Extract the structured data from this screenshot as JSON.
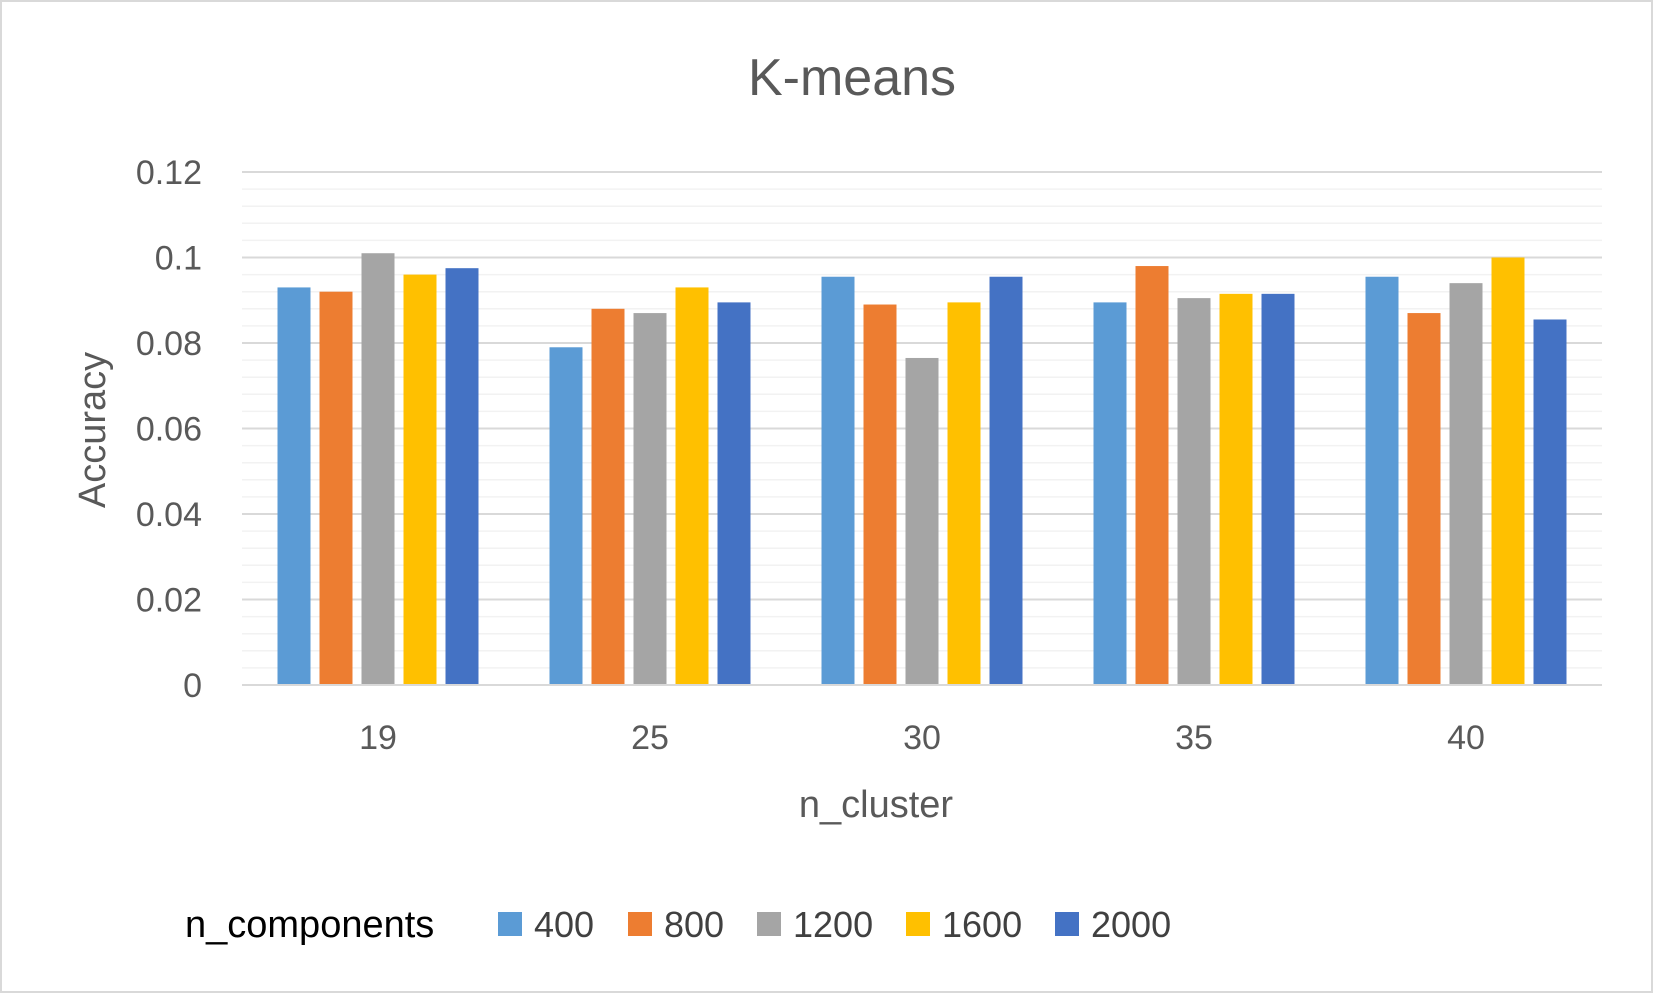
{
  "chart_data": {
    "type": "bar",
    "title": "K-means",
    "xlabel": "n_cluster",
    "ylabel": "Accuracy",
    "categories": [
      "19",
      "25",
      "30",
      "35",
      "40"
    ],
    "ylim": [
      0,
      0.12
    ],
    "yticks": [
      "0",
      "0.02",
      "0.04",
      "0.06",
      "0.08",
      "0.1",
      "0.12"
    ],
    "grid": true,
    "legend_title": "n_components",
    "legend_position": "bottom",
    "series": [
      {
        "name": "400",
        "color": "#5B9BD5",
        "values": [
          0.093,
          0.079,
          0.0955,
          0.0895,
          0.0955
        ]
      },
      {
        "name": "800",
        "color": "#ED7D31",
        "values": [
          0.092,
          0.088,
          0.089,
          0.098,
          0.087
        ]
      },
      {
        "name": "1200",
        "color": "#A5A5A5",
        "values": [
          0.101,
          0.087,
          0.0765,
          0.0905,
          0.094
        ]
      },
      {
        "name": "1600",
        "color": "#FFC000",
        "values": [
          0.096,
          0.093,
          0.0895,
          0.0915,
          0.1
        ]
      },
      {
        "name": "2000",
        "color": "#4472C4",
        "values": [
          0.0975,
          0.0895,
          0.0955,
          0.0915,
          0.0855
        ]
      }
    ]
  }
}
